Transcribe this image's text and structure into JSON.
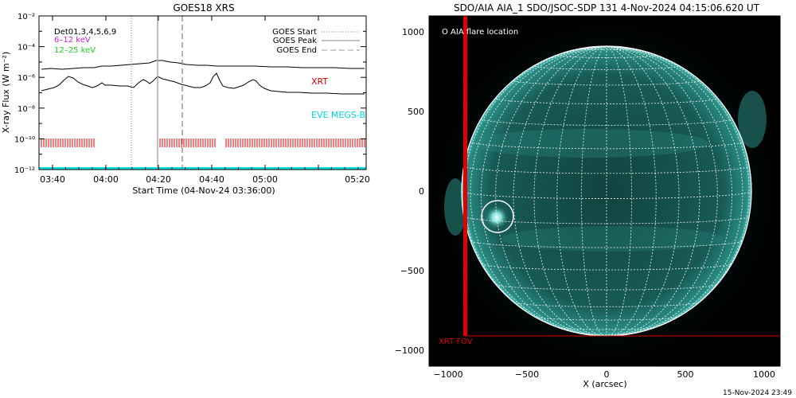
{
  "goes_panel": {
    "title": "GOES18 XRS",
    "ylabel": "X-ray Flux (W m⁻²)",
    "xlabel": "Start Time (04-Nov-24 03:36:00)",
    "legend_top_left": [
      "Det01,3,4,5,6,9",
      "6–12 keV",
      "12–25 keV"
    ],
    "legend_top_left_colors": [
      "#000000",
      "#d01fd0",
      "#20d020"
    ],
    "legend_top_right": [
      "GOES Start",
      "GOES Peak",
      "GOES End"
    ],
    "xrt_label": "XRT",
    "eve_label": "EVE MEGS-B",
    "xrt_color": "#e00000",
    "eve_color": "#00e0e8",
    "x_ticks": [
      "03:40",
      "04:00",
      "04:20",
      "04:40",
      "05:00",
      "05:20"
    ],
    "y_ticks": [
      "10⁻²",
      "10⁻⁴",
      "10⁻⁶",
      "10⁻⁸",
      "10⁻¹⁰",
      "10⁻¹²"
    ]
  },
  "aia_panel": {
    "title": "SDO/AIA AIA_1 SDO/JSOC-SDP 131  4-Nov-2024 04:15:06.620 UT",
    "legend": "O AIA flare location",
    "xrt_fov_label": "XRT FOV",
    "xlabel": "X (arcsec)",
    "x_ticks": [
      "−1000",
      "−500",
      "0",
      "500",
      "1000"
    ],
    "y_ticks": [
      "1000",
      "500",
      "0",
      "−500",
      "−1000"
    ],
    "disk_color": "#0e4a46",
    "fov_color": "#e00000"
  },
  "footer": {
    "timestamp": "15-Nov-2024 23:49"
  },
  "chart_data": [
    {
      "type": "line",
      "title": "GOES18 XRS",
      "xlabel": "Start Time (04-Nov-24 03:36:00)",
      "ylabel": "X-ray Flux (W m⁻²)",
      "y_scale": "log",
      "ylim": [
        1e-12,
        0.01
      ],
      "xlim_minutes_after_start": [
        0,
        105
      ],
      "grid": false,
      "series": [
        {
          "x": [
            3,
            10,
            20,
            30,
            40,
            48,
            56,
            62,
            70,
            80,
            90,
            95,
            100,
            105
          ],
          "values": [
            8e-06,
            8e-06,
            7.5e-06,
            7.5e-06,
            7e-06,
            7e-06,
            7.5e-06,
            1.3e-05,
            9e-06,
            7e-06,
            6e-06,
            5.5e-06,
            5.5e-06,
            5e-06
          ]
        },
        {
          "x": [
            3,
            8,
            13,
            18,
            25,
            30,
            35,
            40,
            44,
            48,
            52,
            56,
            60,
            63,
            68,
            72,
            76,
            78,
            80,
            84,
            88,
            92,
            96,
            100,
            105
          ],
          "values": [
            2e-07,
            3e-07,
            1.3e-06,
            6e-07,
            3e-07,
            4e-07,
            2.5e-07,
            3e-07,
            8e-07,
            3e-07,
            5e-07,
            1.5e-06,
            6e-07,
            3.5e-07,
            2.5e-07,
            4e-07,
            6e-06,
            6e-07,
            3e-07,
            4e-07,
            1.2e-06,
            3e-07,
            2e-07,
            2e-07,
            2e-07
          ]
        },
        {
          "x": [
            0,
            105
          ],
          "values": [
            1e-12,
            1e-12
          ]
        }
      ],
      "vlines_minutes_after_start": {
        "GOES Start": 31,
        "GOES Peak": 39,
        "GOES End": 47
      },
      "xrt_obs_minutes_after_start": [
        [
          3,
          20
        ],
        [
          40,
          72
        ],
        [
          58,
          105
        ]
      ]
    }
  ]
}
